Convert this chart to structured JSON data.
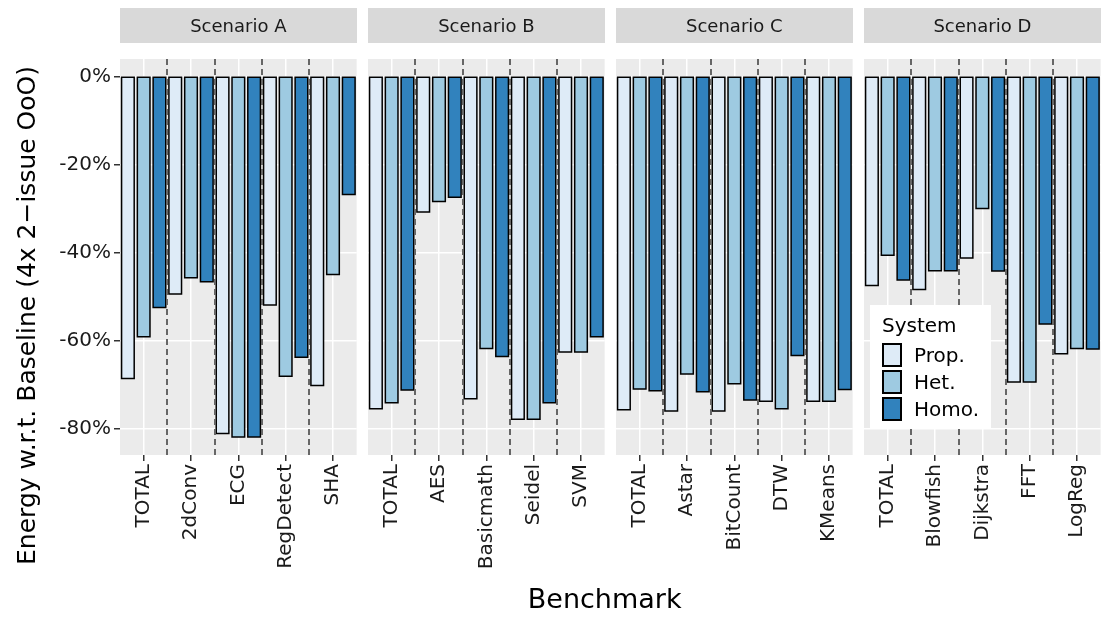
{
  "chart_data": [
    {
      "type": "bar",
      "title": "Scenario A",
      "ylabel": "Energy w.r.t. Baseline (4x 2−issue OoO)",
      "categories": [
        "TOTAL",
        "2dConv",
        "ECG",
        "RegDetect",
        "SHA"
      ],
      "series": [
        {
          "color": "#deebf7",
          "values": [
            -68.6,
            -49.4,
            -81.1,
            -51.9,
            -70.2
          ]
        },
        {
          "color": "#9ecae1",
          "values": [
            -59.1,
            -45.7,
            -81.9,
            -68.1,
            -45.0
          ]
        },
        {
          "color": "#3182bd",
          "values": [
            -52.5,
            -46.6,
            -81.9,
            -63.8,
            -26.8
          ]
        }
      ],
      "ylim": [
        -86,
        4
      ],
      "yticks": [
        {
          "value": 0,
          "label": "0%"
        },
        {
          "value": -20,
          "label": "-20%"
        },
        {
          "value": -40,
          "label": "-40%"
        },
        {
          "value": -60,
          "label": "-60%"
        },
        {
          "value": -80,
          "label": "-80%"
        }
      ],
      "grid": true
    },
    {
      "type": "bar",
      "title": "Scenario B",
      "xlabel": "Benchmark",
      "categories": [
        "TOTAL",
        "AES",
        "Basicmath",
        "Seidel",
        "SVM"
      ],
      "series": [
        {
          "color": "#deebf7",
          "values": [
            -75.5,
            -30.8,
            -73.2,
            -77.9,
            -62.6
          ]
        },
        {
          "color": "#9ecae1",
          "values": [
            -74.1,
            -28.4,
            -61.8,
            -77.9,
            -62.6
          ]
        },
        {
          "color": "#3182bd",
          "values": [
            -71.2,
            -27.4,
            -63.6,
            -74.1,
            -59.1
          ]
        }
      ],
      "ylim": [
        -86,
        4
      ],
      "yticks": [
        {
          "value": 0,
          "label": null
        },
        {
          "value": -20,
          "label": null
        },
        {
          "value": -40,
          "label": null
        },
        {
          "value": -60,
          "label": null
        },
        {
          "value": -80,
          "label": null
        }
      ],
      "grid": true,
      "tick_labels": "x"
    },
    {
      "type": "bar",
      "title": "Scenario C",
      "categories": [
        "TOTAL",
        "Astar",
        "BitCount",
        "DTW",
        "KMeans"
      ],
      "series": [
        {
          "color": "#deebf7",
          "values": [
            -75.7,
            -76.0,
            -76.0,
            -73.8,
            -73.8
          ]
        },
        {
          "color": "#9ecae1",
          "values": [
            -71.0,
            -67.6,
            -69.8,
            -75.5,
            -73.8
          ]
        },
        {
          "color": "#3182bd",
          "values": [
            -71.4,
            -71.6,
            -73.5,
            -63.4,
            -71.1
          ]
        }
      ],
      "ylim": [
        -86,
        4
      ],
      "yticks": [
        {
          "value": 0,
          "label": null
        },
        {
          "value": -20,
          "label": null
        },
        {
          "value": -40,
          "label": null
        },
        {
          "value": -60,
          "label": null
        },
        {
          "value": -80,
          "label": null
        }
      ],
      "grid": true,
      "tick_labels": "x"
    },
    {
      "type": "bar",
      "title": "Scenario D",
      "categories": [
        "TOTAL",
        "Blowfish",
        "Dijkstra",
        "FFT",
        "LogReg"
      ],
      "series": [
        {
          "name": "Prop.",
          "color": "#deebf7",
          "values": [
            -47.5,
            -48.4,
            -41.2,
            -69.4,
            -63.0
          ]
        },
        {
          "name": "Het.",
          "color": "#9ecae1",
          "values": [
            -40.6,
            -44.1,
            -30.0,
            -69.4,
            -61.8
          ]
        },
        {
          "name": "Homo.",
          "color": "#3182bd",
          "values": [
            -46.2,
            -44.1,
            -44.2,
            -56.2,
            -61.9
          ]
        }
      ],
      "ylim": [
        -86,
        4
      ],
      "yticks": [
        {
          "value": 0,
          "label": null
        },
        {
          "value": -20,
          "label": null
        },
        {
          "value": -40,
          "label": null
        },
        {
          "value": -60,
          "label": null
        },
        {
          "value": -80,
          "label": null
        }
      ],
      "grid": true,
      "tick_labels": "x",
      "legend": "bottom left",
      "legend_title": "System"
    }
  ]
}
